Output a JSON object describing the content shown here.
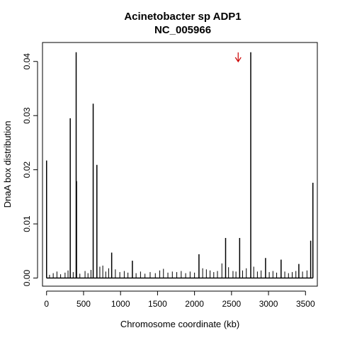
{
  "chart_data": {
    "type": "bar",
    "title_lines": [
      "Acinetobacter sp ADP1",
      "NC_005966"
    ],
    "xlabel": "Chromosome coordinate (kb)",
    "ylabel": "DnaA box distribution",
    "xlim": [
      -55,
      3660
    ],
    "ylim": [
      -0.0015,
      0.0435
    ],
    "x_ticks": [
      0,
      500,
      1000,
      1500,
      2000,
      2500,
      3000,
      3500
    ],
    "y_ticks": [
      0.0,
      0.01,
      0.02,
      0.03,
      0.04
    ],
    "y_tick_labels": [
      "0.00",
      "0.01",
      "0.02",
      "0.03",
      "0.04"
    ],
    "grid": false,
    "arrow_marker": {
      "x": 2590,
      "color": "#cc0000"
    },
    "spikes": [
      {
        "x": 0,
        "y": 0.0217
      },
      {
        "x": 320,
        "y": 0.0295
      },
      {
        "x": 400,
        "y": 0.0417
      },
      {
        "x": 405,
        "y": 0.0179
      },
      {
        "x": 630,
        "y": 0.0322
      },
      {
        "x": 680,
        "y": 0.0209
      },
      {
        "x": 880,
        "y": 0.0047
      },
      {
        "x": 1160,
        "y": 0.0032
      },
      {
        "x": 2060,
        "y": 0.0044
      },
      {
        "x": 2420,
        "y": 0.0074
      },
      {
        "x": 2610,
        "y": 0.0074
      },
      {
        "x": 2760,
        "y": 0.0417
      },
      {
        "x": 2960,
        "y": 0.0037
      },
      {
        "x": 3170,
        "y": 0.0034
      },
      {
        "x": 3410,
        "y": 0.0026
      },
      {
        "x": 3570,
        "y": 0.0069
      },
      {
        "x": 3600,
        "y": 0.0176
      }
    ],
    "small_bars": [
      {
        "x": 40,
        "y": 0.0006
      },
      {
        "x": 90,
        "y": 0.0009
      },
      {
        "x": 140,
        "y": 0.0012
      },
      {
        "x": 190,
        "y": 0.0007
      },
      {
        "x": 250,
        "y": 0.001
      },
      {
        "x": 290,
        "y": 0.0014
      },
      {
        "x": 360,
        "y": 0.0011
      },
      {
        "x": 450,
        "y": 0.0008
      },
      {
        "x": 520,
        "y": 0.0013
      },
      {
        "x": 560,
        "y": 0.0009
      },
      {
        "x": 600,
        "y": 0.0015
      },
      {
        "x": 720,
        "y": 0.0021
      },
      {
        "x": 760,
        "y": 0.0023
      },
      {
        "x": 800,
        "y": 0.0012
      },
      {
        "x": 840,
        "y": 0.0018
      },
      {
        "x": 930,
        "y": 0.0016
      },
      {
        "x": 990,
        "y": 0.0011
      },
      {
        "x": 1050,
        "y": 0.0013
      },
      {
        "x": 1100,
        "y": 0.001
      },
      {
        "x": 1210,
        "y": 0.0009
      },
      {
        "x": 1270,
        "y": 0.0012
      },
      {
        "x": 1330,
        "y": 0.0008
      },
      {
        "x": 1400,
        "y": 0.0011
      },
      {
        "x": 1470,
        "y": 0.0009
      },
      {
        "x": 1530,
        "y": 0.0014
      },
      {
        "x": 1580,
        "y": 0.0017
      },
      {
        "x": 1640,
        "y": 0.001
      },
      {
        "x": 1700,
        "y": 0.0012
      },
      {
        "x": 1760,
        "y": 0.0011
      },
      {
        "x": 1820,
        "y": 0.0013
      },
      {
        "x": 1880,
        "y": 0.0009
      },
      {
        "x": 1940,
        "y": 0.0012
      },
      {
        "x": 2000,
        "y": 0.001
      },
      {
        "x": 2110,
        "y": 0.0018
      },
      {
        "x": 2160,
        "y": 0.0016
      },
      {
        "x": 2210,
        "y": 0.0014
      },
      {
        "x": 2260,
        "y": 0.0011
      },
      {
        "x": 2310,
        "y": 0.0013
      },
      {
        "x": 2370,
        "y": 0.0027
      },
      {
        "x": 2460,
        "y": 0.002
      },
      {
        "x": 2520,
        "y": 0.0013
      },
      {
        "x": 2560,
        "y": 0.0012
      },
      {
        "x": 2650,
        "y": 0.0014
      },
      {
        "x": 2700,
        "y": 0.0018
      },
      {
        "x": 2800,
        "y": 0.0021
      },
      {
        "x": 2850,
        "y": 0.0012
      },
      {
        "x": 2900,
        "y": 0.0014
      },
      {
        "x": 3010,
        "y": 0.0011
      },
      {
        "x": 3060,
        "y": 0.0013
      },
      {
        "x": 3110,
        "y": 0.001
      },
      {
        "x": 3220,
        "y": 0.0012
      },
      {
        "x": 3270,
        "y": 0.0009
      },
      {
        "x": 3320,
        "y": 0.0011
      },
      {
        "x": 3370,
        "y": 0.0013
      },
      {
        "x": 3460,
        "y": 0.0012
      },
      {
        "x": 3520,
        "y": 0.0014
      }
    ]
  }
}
